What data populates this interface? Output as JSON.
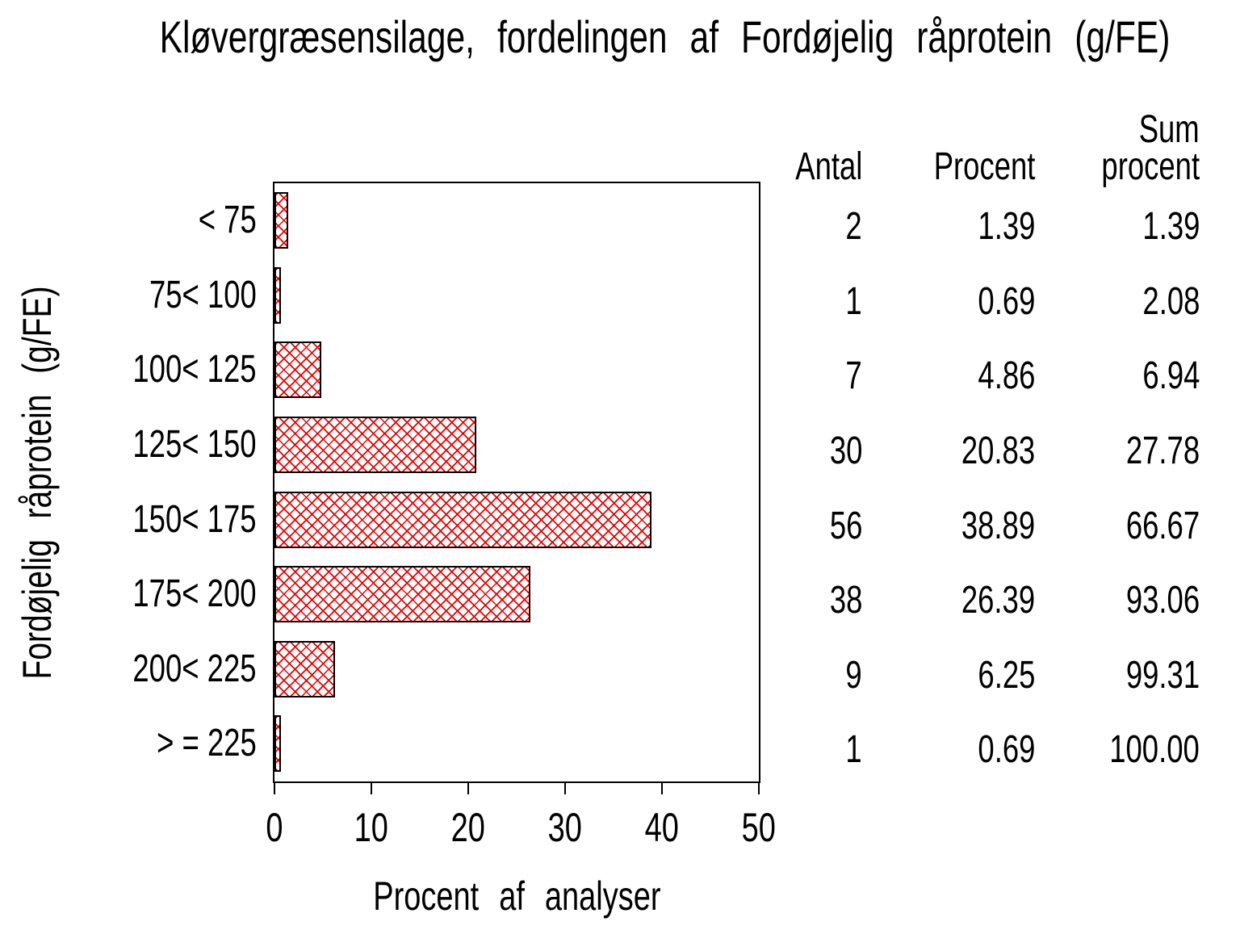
{
  "title": "Kløvergræsensilage, fordelingen af Fordøjelig råprotein (g/FE)",
  "chart_data": {
    "type": "bar",
    "orientation": "horizontal",
    "title": "Kløvergræsensilage, fordelingen af Fordøjelig råprotein (g/FE)",
    "categories": [
      "< 75",
      "75< 100",
      "100< 125",
      "125< 150",
      "150< 175",
      "175< 200",
      "200< 225",
      "> = 225"
    ],
    "values": [
      1.39,
      0.69,
      4.86,
      20.83,
      38.89,
      26.39,
      6.25,
      0.69
    ],
    "counts": [
      2,
      1,
      7,
      30,
      56,
      38,
      9,
      1
    ],
    "cum_percent": [
      1.39,
      2.08,
      6.94,
      27.78,
      66.67,
      93.06,
      99.31,
      100.0
    ],
    "xlabel": "Procent af analyser",
    "ylabel": "Fordøjelig  råprotein  (g/FE)",
    "xlim": [
      0,
      50
    ],
    "xticks": [
      0,
      10,
      20,
      30,
      40,
      50
    ],
    "grid": false,
    "legend": false,
    "bar_fill": "#ffffff",
    "hatch_color": "#e60000",
    "bar_border_color": "#000000",
    "axis_color": "#000000"
  },
  "table": {
    "header_top": "Sum",
    "headers": [
      "Antal",
      "Procent",
      "procent"
    ],
    "rows": [
      [
        "2",
        "1.39",
        "1.39"
      ],
      [
        "1",
        "0.69",
        "2.08"
      ],
      [
        "7",
        "4.86",
        "6.94"
      ],
      [
        "30",
        "20.83",
        "27.78"
      ],
      [
        "56",
        "38.89",
        "66.67"
      ],
      [
        "38",
        "26.39",
        "93.06"
      ],
      [
        "9",
        "6.25",
        "99.31"
      ],
      [
        "1",
        "0.69",
        "100.00"
      ]
    ]
  }
}
